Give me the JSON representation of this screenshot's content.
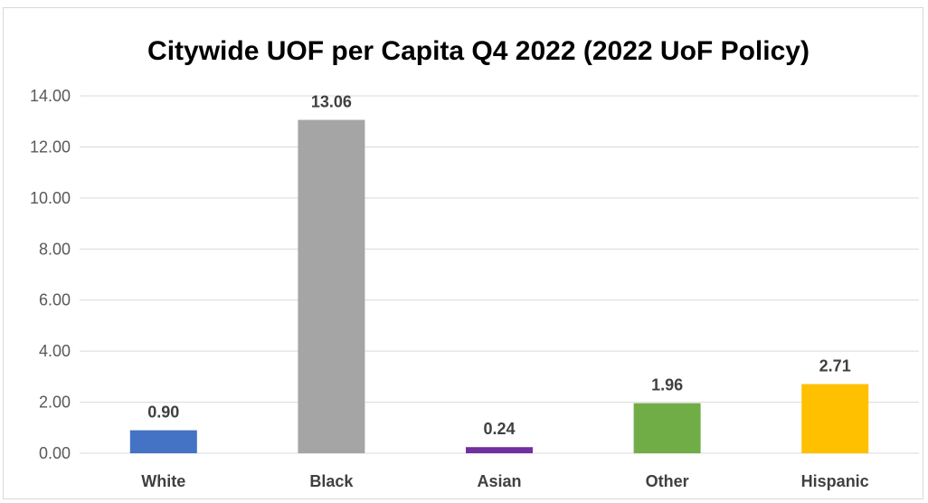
{
  "chart_data": {
    "type": "bar",
    "title": "Citywide UOF per Capita Q4 2022 (2022 UoF Policy)",
    "xlabel": "",
    "ylabel": "",
    "categories": [
      "White",
      "Black",
      "Asian",
      "Other",
      "Hispanic"
    ],
    "values": [
      0.9,
      13.06,
      0.24,
      1.96,
      2.71
    ],
    "data_labels": [
      "0.90",
      "13.06",
      "0.24",
      "1.96",
      "2.71"
    ],
    "colors": [
      "#4472c4",
      "#a5a5a5",
      "#7030a0",
      "#70ad47",
      "#ffc000"
    ],
    "ylim": [
      0,
      14
    ],
    "yticks": [
      "0.00",
      "2.00",
      "4.00",
      "6.00",
      "8.00",
      "10.00",
      "12.00",
      "14.00"
    ],
    "grid": true,
    "legend": "none"
  }
}
